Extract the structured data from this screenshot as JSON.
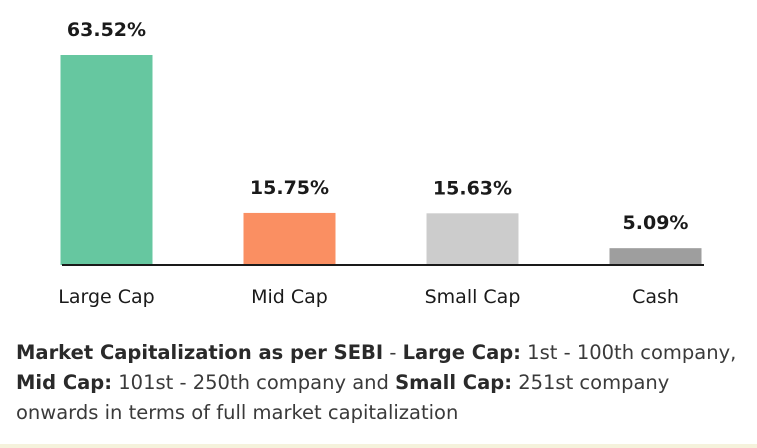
{
  "chart_data": {
    "type": "bar",
    "categories": [
      "Large Cap",
      "Mid Cap",
      "Small Cap",
      "Cash"
    ],
    "values": [
      63.52,
      15.75,
      15.63,
      5.09
    ],
    "value_labels": [
      "63.52%",
      "15.75%",
      "15.63%",
      "5.09%"
    ],
    "colors": [
      "#66c7a0",
      "#fa8f62",
      "#cccccc",
      "#9e9e9e"
    ],
    "baseline_color": "#1a1a1a",
    "grid": false,
    "legend": "none",
    "title": "",
    "xlabel": "",
    "ylabel": ""
  },
  "note": {
    "title": "Market Capitalization as per SEBI",
    "separator": " - ",
    "large_label": "Large Cap:",
    "large_text": " 1st - 100th company, ",
    "mid_label": "Mid Cap:",
    "mid_text": " 101st - 250th company and ",
    "small_label": "Small Cap:",
    "small_text": " 251st company onwards in terms of full market capitalization"
  },
  "bottom_strip_color": "#f5f2dc"
}
